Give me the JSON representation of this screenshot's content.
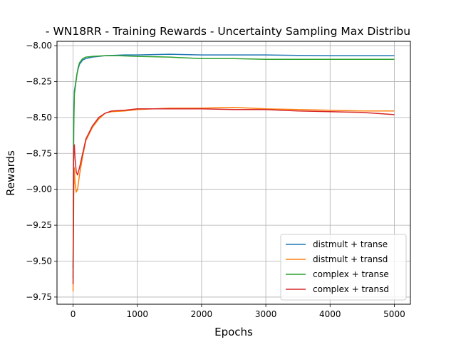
{
  "chart_data": {
    "type": "line",
    "title": "- WN18RR - Training Rewards - Uncertainty Sampling Max Distribu",
    "xlabel": "Epochs",
    "ylabel": "Rewards",
    "xlim": [
      -250,
      5250
    ],
    "ylim": [
      -9.8,
      -7.97
    ],
    "xticks": [
      0,
      1000,
      2000,
      3000,
      4000,
      5000
    ],
    "xtick_labels": [
      "0",
      "1000",
      "2000",
      "3000",
      "4000",
      "5000"
    ],
    "yticks": [
      -8.0,
      -8.25,
      -8.5,
      -8.75,
      -9.0,
      -9.25,
      -9.5,
      -9.75
    ],
    "ytick_labels": [
      "−8.00",
      "−8.25",
      "−8.50",
      "−8.75",
      "−9.00",
      "−9.25",
      "−9.50",
      "−9.75"
    ],
    "grid": true,
    "legend_position": "lower-right",
    "series": [
      {
        "name": "distmult + transe",
        "color": "#1f77b4",
        "points": [
          [
            0,
            -9.62
          ],
          [
            10,
            -8.5
          ],
          [
            20,
            -8.32
          ],
          [
            40,
            -8.26
          ],
          [
            60,
            -8.2
          ],
          [
            80,
            -8.16
          ],
          [
            100,
            -8.13
          ],
          [
            150,
            -8.1
          ],
          [
            200,
            -8.09
          ],
          [
            300,
            -8.08
          ],
          [
            500,
            -8.07
          ],
          [
            800,
            -8.065
          ],
          [
            1000,
            -8.065
          ],
          [
            1500,
            -8.06
          ],
          [
            2000,
            -8.065
          ],
          [
            2500,
            -8.065
          ],
          [
            3000,
            -8.065
          ],
          [
            3500,
            -8.068
          ],
          [
            4000,
            -8.07
          ],
          [
            4500,
            -8.07
          ],
          [
            5000,
            -8.07
          ]
        ]
      },
      {
        "name": "distmult + transd",
        "color": "#ff7f0e",
        "points": [
          [
            0,
            -9.71
          ],
          [
            10,
            -9.05
          ],
          [
            20,
            -8.85
          ],
          [
            30,
            -8.95
          ],
          [
            50,
            -9.02
          ],
          [
            70,
            -9.0
          ],
          [
            100,
            -8.9
          ],
          [
            150,
            -8.77
          ],
          [
            200,
            -8.66
          ],
          [
            300,
            -8.57
          ],
          [
            400,
            -8.51
          ],
          [
            500,
            -8.47
          ],
          [
            600,
            -8.46
          ],
          [
            800,
            -8.455
          ],
          [
            1000,
            -8.445
          ],
          [
            1500,
            -8.435
          ],
          [
            2000,
            -8.435
          ],
          [
            2500,
            -8.43
          ],
          [
            3000,
            -8.44
          ],
          [
            3500,
            -8.445
          ],
          [
            4000,
            -8.45
          ],
          [
            4500,
            -8.455
          ],
          [
            5000,
            -8.455
          ]
        ]
      },
      {
        "name": "complex + transe",
        "color": "#2ca02c",
        "points": [
          [
            0,
            -9.55
          ],
          [
            10,
            -8.6
          ],
          [
            20,
            -8.34
          ],
          [
            40,
            -8.27
          ],
          [
            60,
            -8.2
          ],
          [
            80,
            -8.15
          ],
          [
            100,
            -8.12
          ],
          [
            150,
            -8.09
          ],
          [
            200,
            -8.08
          ],
          [
            300,
            -8.075
          ],
          [
            500,
            -8.07
          ],
          [
            700,
            -8.07
          ],
          [
            1000,
            -8.075
          ],
          [
            1500,
            -8.08
          ],
          [
            2000,
            -8.09
          ],
          [
            2500,
            -8.09
          ],
          [
            3000,
            -8.095
          ],
          [
            3500,
            -8.095
          ],
          [
            4000,
            -8.095
          ],
          [
            4500,
            -8.095
          ],
          [
            5000,
            -8.095
          ]
        ]
      },
      {
        "name": "complex + transd",
        "color": "#d62728",
        "points": [
          [
            0,
            -9.66
          ],
          [
            10,
            -8.72
          ],
          [
            20,
            -8.69
          ],
          [
            30,
            -8.78
          ],
          [
            50,
            -8.88
          ],
          [
            70,
            -8.9
          ],
          [
            100,
            -8.85
          ],
          [
            150,
            -8.75
          ],
          [
            200,
            -8.65
          ],
          [
            300,
            -8.56
          ],
          [
            400,
            -8.5
          ],
          [
            500,
            -8.47
          ],
          [
            600,
            -8.455
          ],
          [
            800,
            -8.45
          ],
          [
            1000,
            -8.44
          ],
          [
            1500,
            -8.44
          ],
          [
            2000,
            -8.44
          ],
          [
            2500,
            -8.445
          ],
          [
            3000,
            -8.445
          ],
          [
            3500,
            -8.455
          ],
          [
            4000,
            -8.46
          ],
          [
            4500,
            -8.465
          ],
          [
            5000,
            -8.48
          ]
        ]
      }
    ]
  }
}
